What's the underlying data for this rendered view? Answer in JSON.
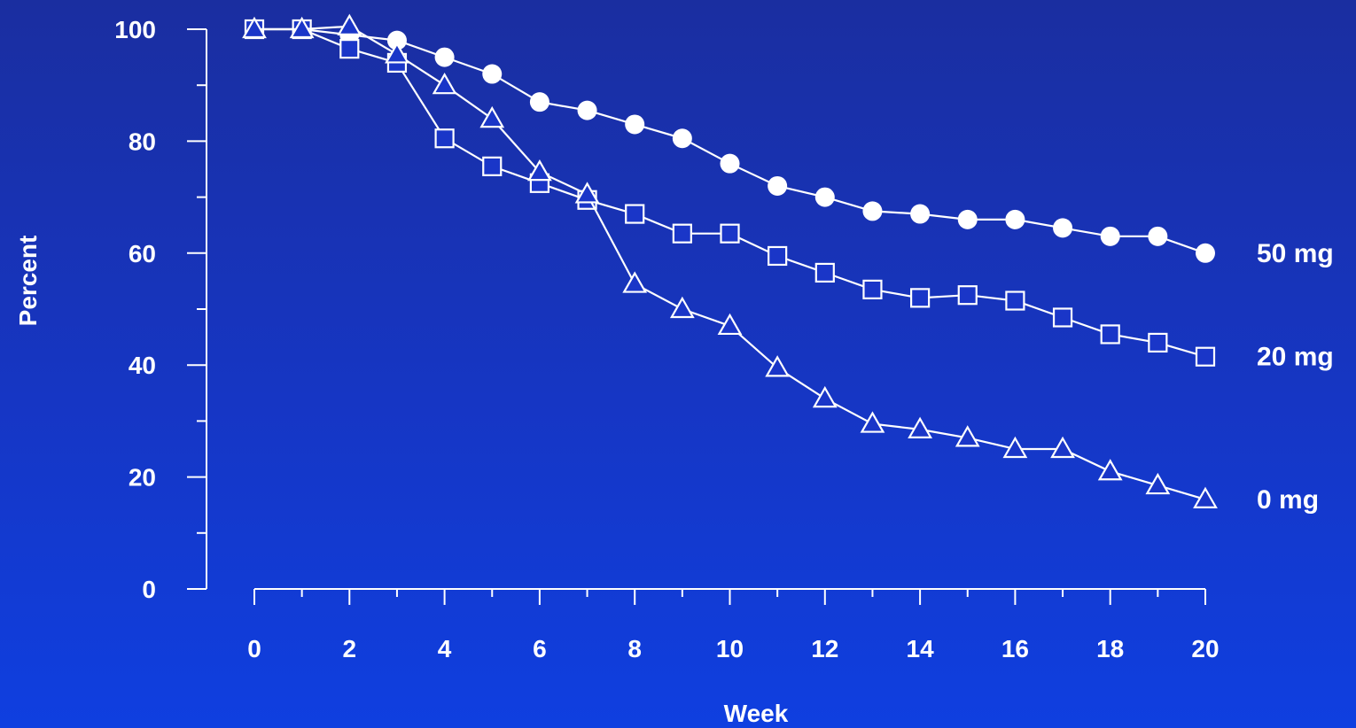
{
  "chart_data": {
    "type": "line",
    "xlabel": "Week",
    "ylabel": "Percent",
    "xlim": [
      0,
      20
    ],
    "ylim": [
      0,
      100
    ],
    "x_ticks": [
      "0",
      "2",
      "4",
      "6",
      "8",
      "10",
      "12",
      "14",
      "16",
      "18",
      "20"
    ],
    "y_ticks": [
      "0",
      "20",
      "40",
      "60",
      "80",
      "100"
    ],
    "grid": false,
    "legend": "direct labels at right end of series",
    "x": [
      0,
      1,
      2,
      3,
      4,
      5,
      6,
      7,
      8,
      9,
      10,
      11,
      12,
      13,
      14,
      15,
      16,
      17,
      18,
      19,
      20
    ],
    "series": [
      {
        "name": "50 mg",
        "marker": "filled-circle",
        "values": [
          100,
          100,
          99,
          98,
          95,
          92,
          87,
          85.5,
          83,
          80.5,
          76,
          72,
          70,
          67.5,
          67,
          66,
          66,
          64.5,
          63,
          63,
          60
        ]
      },
      {
        "name": "20 mg",
        "marker": "open-square",
        "values": [
          100,
          100,
          96.5,
          94,
          80.5,
          75.5,
          72.5,
          69.5,
          67,
          63.5,
          63.5,
          59.5,
          56.5,
          53.5,
          52,
          52.5,
          51.5,
          48.5,
          45.5,
          44,
          41.5
        ]
      },
      {
        "name": "0 mg",
        "marker": "open-triangle",
        "values": [
          100,
          100,
          100.5,
          95.5,
          90,
          84,
          74.5,
          70.5,
          54.5,
          50,
          47,
          39.5,
          34,
          29.5,
          28.5,
          27,
          25,
          25,
          21,
          18.5,
          16
        ]
      }
    ],
    "colors": {
      "line": "#ffffff",
      "text": "#ffffff",
      "background": "#1636c4"
    }
  }
}
